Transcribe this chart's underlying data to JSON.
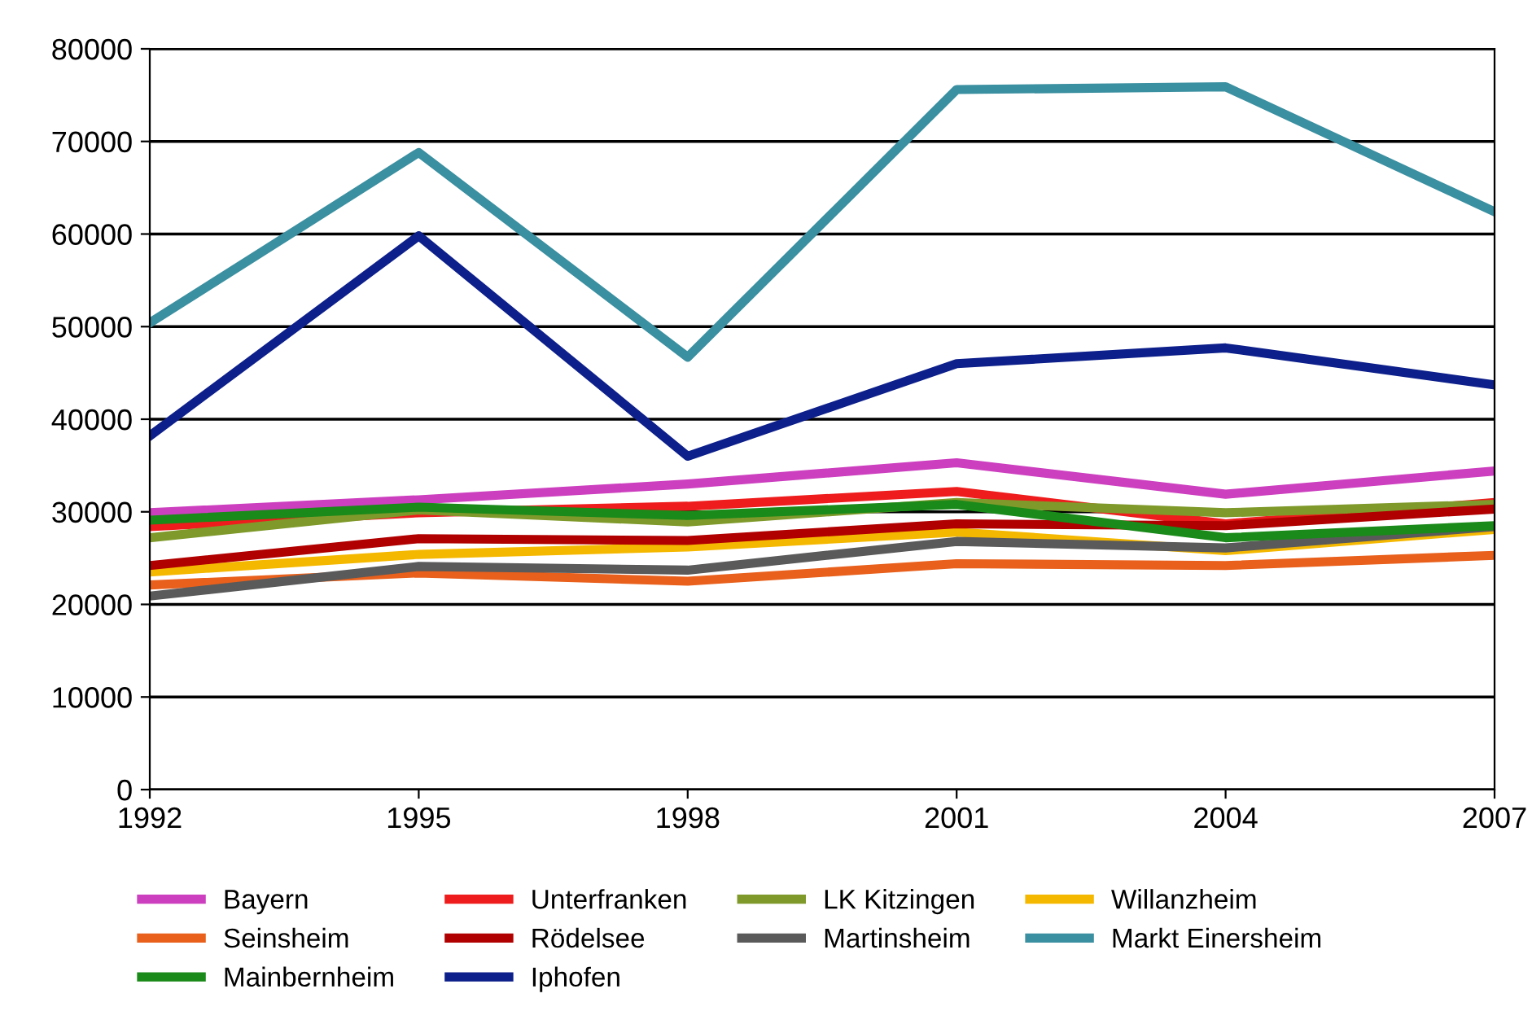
{
  "chart_data": {
    "type": "line",
    "x": [
      1992,
      1995,
      1998,
      2001,
      2004,
      2007
    ],
    "xlim": [
      1992,
      2007
    ],
    "xticks": [
      1992,
      1995,
      1998,
      2001,
      2004,
      2007
    ],
    "ylim": [
      0,
      80000
    ],
    "yticks": [
      0,
      10000,
      20000,
      30000,
      40000,
      50000,
      60000,
      70000,
      80000
    ],
    "grid": "y",
    "legend": "bottom",
    "marker": "none",
    "line_style": "solid",
    "series": [
      {
        "name": "Bayern",
        "color": "#cc3fbf",
        "values": [
          29900,
          31300,
          33000,
          35300,
          31900,
          34400
        ]
      },
      {
        "name": "Unterfranken",
        "color": "#ee1c1c",
        "values": [
          28400,
          29900,
          30600,
          32200,
          28700,
          31000
        ]
      },
      {
        "name": "LK Kitzingen",
        "color": "#7f9a2a",
        "values": [
          27200,
          30200,
          28900,
          31000,
          29900,
          30800
        ]
      },
      {
        "name": "Willanzheim",
        "color": "#f5b800",
        "values": [
          23500,
          25400,
          26200,
          27800,
          25800,
          28100
        ]
      },
      {
        "name": "Seinsheim",
        "color": "#e8601c",
        "values": [
          22100,
          23400,
          22500,
          24400,
          24200,
          25300
        ]
      },
      {
        "name": "Rödelsee",
        "color": "#b00000",
        "values": [
          24200,
          27100,
          26900,
          28700,
          28500,
          30300
        ]
      },
      {
        "name": "Martinsheim",
        "color": "#5a5a5a",
        "values": [
          20900,
          24100,
          23700,
          26800,
          26100,
          28400
        ]
      },
      {
        "name": "Markt Einersheim",
        "color": "#3a8fa0",
        "values": [
          50400,
          68800,
          46700,
          75600,
          75900,
          62400
        ]
      },
      {
        "name": "Mainbernheim",
        "color": "#1a8a1a",
        "values": [
          29100,
          30500,
          29600,
          30800,
          27200,
          28500
        ]
      },
      {
        "name": "Iphofen",
        "color": "#0d1f8a",
        "values": [
          38200,
          59800,
          36000,
          46000,
          47700,
          43700
        ]
      }
    ]
  }
}
